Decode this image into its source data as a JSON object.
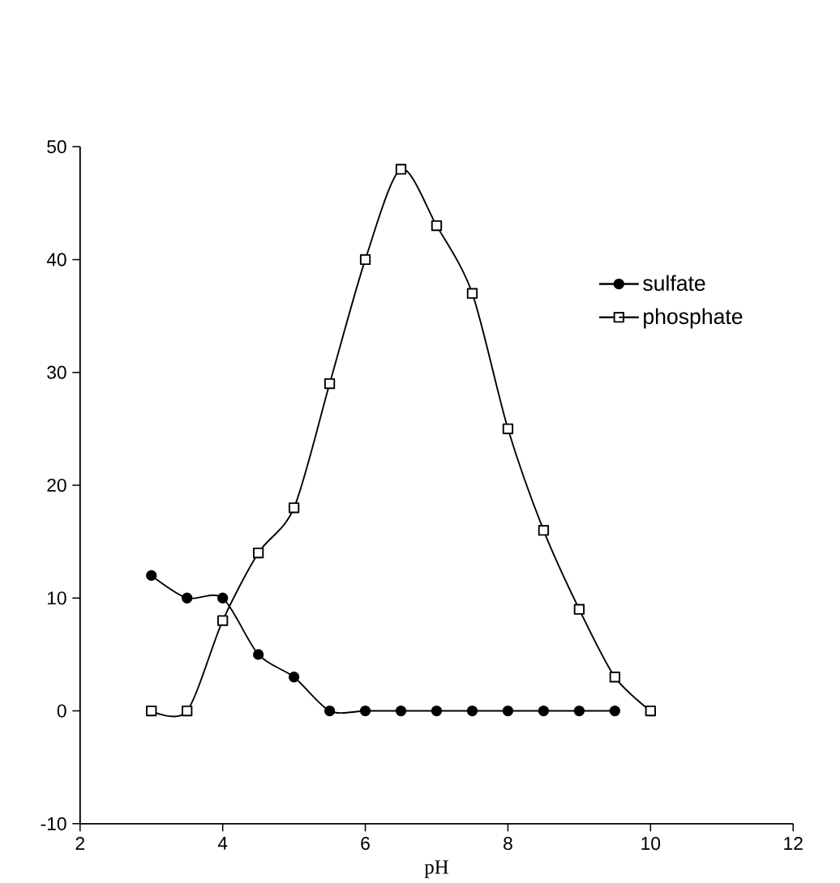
{
  "chart_data": {
    "type": "line",
    "xlabel": "pH",
    "x": [
      3,
      3.5,
      4,
      4.5,
      5,
      5.5,
      6,
      6.5,
      7,
      7.5,
      8,
      8.5,
      9,
      9.5,
      10
    ],
    "series": [
      {
        "name": "sulfate",
        "color": "#000000",
        "marker": "circle",
        "x": [
          3,
          3.5,
          4,
          4.5,
          5,
          5.5,
          6,
          6.5,
          7,
          7.5,
          8,
          8.5,
          9,
          9.5
        ],
        "values": [
          12,
          10,
          10,
          5,
          3,
          0,
          0,
          0,
          0,
          0,
          0,
          0,
          0,
          0
        ]
      },
      {
        "name": "phosphate",
        "color": "#000000",
        "marker": "square",
        "values": [
          0,
          0,
          8,
          14,
          18,
          29,
          40,
          48,
          43,
          37,
          25,
          16,
          9,
          3,
          0
        ]
      }
    ],
    "xlim": [
      2,
      12
    ],
    "xticks": [
      2,
      4,
      6,
      8,
      10,
      12
    ],
    "ylim": [
      -10,
      50
    ],
    "yticks": [
      -10,
      0,
      10,
      20,
      30,
      40,
      50
    ],
    "grid": false,
    "legend": "right",
    "line_style": "solid"
  }
}
